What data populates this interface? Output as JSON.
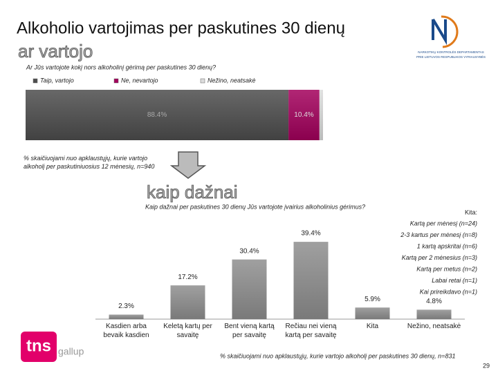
{
  "header": {
    "title": "Alkoholio vartojimas per paskutines 30 dienų",
    "section1": "ar vartojo",
    "section2": "kaip dažnai",
    "page_number": "29"
  },
  "logos": {
    "nkd_line1": "NARKOTIKŲ KONTROLĖS DEPARTAMENTAS",
    "nkd_line2": "PRIE LIETUVOS RESPUBLIKOS VYRIAUSYBĖS",
    "tns": "tns",
    "gallup": "gallup"
  },
  "chart_data": [
    {
      "type": "stacked_bar",
      "title": "Ar Jūs vartojote kokį nors alkoholinį gėrimą per paskutines 30 dienų?",
      "series": [
        {
          "name": "Taip, vartojo",
          "color": "#4d4d4d",
          "values": [
            88.4
          ],
          "value_labels": [
            "88.4%"
          ]
        },
        {
          "name": "Ne, nevartojo",
          "color": "#a3005c",
          "values": [
            10.4
          ],
          "value_labels": [
            "10.4%"
          ]
        },
        {
          "name": "Nežino, neatsakė",
          "color": "#dcdcdc",
          "values": [
            1.2
          ]
        }
      ],
      "note": "% skaičiuojami nuo apklaustųjų, kurie vartojo alkoholį per paskutiniuosius 12 mėnesių, n=940"
    },
    {
      "type": "bar",
      "title": "Kaip dažnai per paskutines 30 dienų Jūs vartojote įvairius alkoholinius gėrimus?",
      "categories": [
        "Kasdien arba bevaik kasdien",
        "Keletą kartų per savaitę",
        "Bent vieną kartą per savaitę",
        "Rečiau nei vieną kartą per savaitę",
        "Kita",
        "Nežino, neatsakė"
      ],
      "values": [
        2.3,
        17.2,
        30.4,
        39.4,
        5.9,
        4.8
      ],
      "value_labels": [
        "2.3%",
        "17.2%",
        "30.4%",
        "39.4%",
        "5.9%",
        "4.8%"
      ],
      "color": "#8f8f8f",
      "other": {
        "title": "Kita:",
        "items": [
          "Kartą per mėnesį (n=24)",
          "2-3 kartus per mėnesį (n=8)",
          "1 kartą apskritai (n=6)",
          "Kartą per 2 mėnesius (n=3)",
          "Kartą per metus (n=2)",
          "Labai retai (n=1)",
          "Kai prireikdavo (n=1)"
        ]
      },
      "note": "% skaičiuojami nuo apklaustųjų, kurie vartojo alkoholį per paskutines 30 dienų, n=831"
    }
  ]
}
